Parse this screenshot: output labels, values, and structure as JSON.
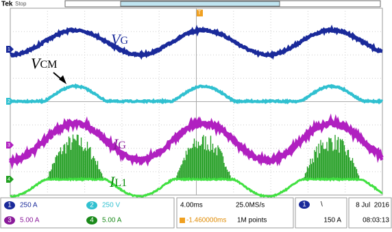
{
  "header": {
    "brand": "Tek",
    "status": "Stop",
    "trigger_marker": "T"
  },
  "channel_markers": [
    "1",
    "2",
    "3",
    "4"
  ],
  "labels": {
    "vg": {
      "main": "V",
      "sub": "G"
    },
    "vcm": {
      "main": "V",
      "sub": "CM"
    },
    "ig": {
      "main": "I",
      "sub": "G"
    },
    "il1": {
      "main": "I",
      "sub": "L1"
    }
  },
  "status_bar": {
    "channels": [
      {
        "number": "1",
        "scale": "250 A"
      },
      {
        "number": "2",
        "scale": "250 V"
      },
      {
        "number": "3",
        "scale": "5.00 A"
      },
      {
        "number": "4",
        "scale": "5.00 A"
      }
    ],
    "horizontal": {
      "timebase": "4.00ms",
      "sample_rate": "25.0MS/s",
      "position": "-1.460000ms",
      "record_length": "1M points"
    },
    "trigger": {
      "source": "1",
      "slope": "\\",
      "level": "150 A"
    },
    "date": "8 Jul  2016",
    "time": "08:03:13"
  }
}
